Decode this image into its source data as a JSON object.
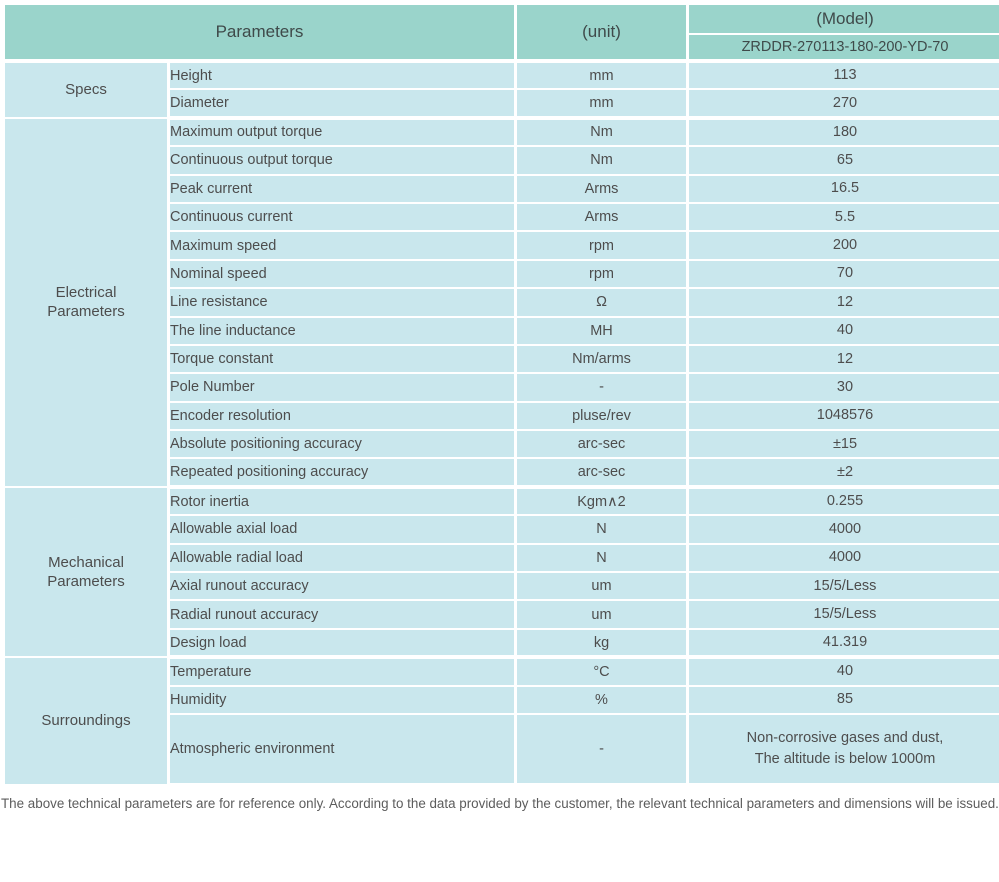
{
  "header": {
    "parameters_label": "Parameters",
    "unit_label": "(unit)",
    "model_label": "(Model)",
    "model_value": "ZRDDR-270113-180-200-YD-70"
  },
  "groups": [
    {
      "name": "Specs",
      "rows": [
        [
          "Height",
          "mm",
          "113"
        ],
        [
          "Diameter",
          "mm",
          "270"
        ]
      ]
    },
    {
      "name": "Electrical\nParameters",
      "rows": [
        [
          "Maximum output torque",
          "Nm",
          "180"
        ],
        [
          "Continuous output torque",
          "Nm",
          "65"
        ],
        [
          "Peak current",
          "Arms",
          "16.5"
        ],
        [
          "Continuous current",
          "Arms",
          "5.5"
        ],
        [
          "Maximum speed",
          "rpm",
          "200"
        ],
        [
          "Nominal speed",
          "rpm",
          "70"
        ],
        [
          "Line resistance",
          "Ω",
          "12"
        ],
        [
          "The line inductance",
          "MH",
          "40"
        ],
        [
          "Torque constant",
          "Nm/arms",
          "12"
        ],
        [
          "Pole Number",
          "-",
          "30"
        ],
        [
          "Encoder resolution",
          "pluse/rev",
          "1048576"
        ],
        [
          "Absolute positioning accuracy",
          "arc-sec",
          "±15"
        ],
        [
          "Repeated positioning accuracy",
          "arc-sec",
          "±2"
        ]
      ]
    },
    {
      "name": "Mechanical\nParameters",
      "rows": [
        [
          "Rotor inertia",
          "Kgm∧2",
          "0.255"
        ],
        [
          "Allowable axial load",
          "N",
          "4000"
        ],
        [
          "Allowable radial load",
          "N",
          "4000"
        ],
        [
          "Axial runout accuracy",
          "um",
          "15/5/Less"
        ],
        [
          "Radial runout accuracy",
          "um",
          "15/5/Less"
        ],
        [
          "Design load",
          "kg",
          "41.319"
        ]
      ]
    },
    {
      "name": "Surroundings",
      "rows": [
        [
          "Temperature",
          "°C",
          "40"
        ],
        [
          "Humidity",
          "%",
          "85"
        ],
        [
          "Atmospheric environment",
          "-",
          "Non-corrosive gases and dust,\nThe altitude is below 1000m"
        ]
      ]
    }
  ],
  "footer_note": "The above technical parameters are for reference only. According to the data provided by the customer, the relevant technical parameters and dimensions will be issued.",
  "colors": {
    "header_bg": "#9ad4cb",
    "cell_bg": "#c9e7ed",
    "grid_line": "#ffffff",
    "text": "#4d4d4d"
  }
}
